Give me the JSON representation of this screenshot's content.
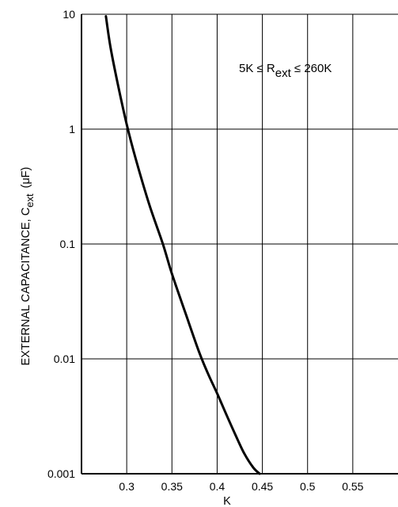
{
  "chart_data": {
    "type": "line",
    "title": "",
    "xlabel": "K",
    "ylabel_main": "EXTERNAL CAPACITANCE, C",
    "ylabel_sub": "ext",
    "ylabel_unit": "(μF)",
    "yscale": "log",
    "xlim": [
      0.25,
      0.6
    ],
    "ylim": [
      0.001,
      10
    ],
    "x_ticks": [
      0.3,
      0.35,
      0.4,
      0.45,
      0.5,
      0.55
    ],
    "x_tick_labels": [
      "0.3",
      "0.35",
      "0.4",
      "0.45",
      "0.5",
      "0.55"
    ],
    "y_ticks": [
      0.001,
      0.01,
      0.1,
      1,
      10
    ],
    "y_tick_labels": [
      "0.001",
      "0.01",
      "0.1",
      "1",
      "10"
    ],
    "grid": true,
    "annotation": {
      "prefix": "5K ≤ R",
      "sub": "ext",
      "suffix": " ≤ 260K"
    },
    "series": [
      {
        "x": [
          0.277,
          0.282,
          0.29,
          0.3,
          0.31,
          0.325,
          0.34,
          0.35,
          0.365,
          0.38,
          0.39,
          0.4,
          0.41,
          0.42,
          0.43,
          0.44,
          0.447
        ],
        "values": [
          9.6,
          5.2,
          2.5,
          1.1,
          0.55,
          0.22,
          0.1,
          0.055,
          0.025,
          0.0115,
          0.0074,
          0.005,
          0.0033,
          0.0022,
          0.0015,
          0.00113,
          0.001
        ]
      }
    ]
  }
}
